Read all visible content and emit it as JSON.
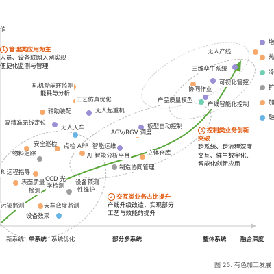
{
  "y_axis_label": "值",
  "x_ticks": [
    {
      "text": "新系统",
      "bold": false
    },
    {
      "text": "单系统",
      "bold": true
    },
    {
      "text": "系统优化",
      "bold": false
    },
    {
      "text": "部分多系统",
      "bold": true
    },
    {
      "text": "整体系统",
      "bold": true
    },
    {
      "text": "融合深度",
      "bold": true
    }
  ],
  "callouts": {
    "c1": {
      "num": "1",
      "head": "管理类应用为主",
      "lines": [
        "人员、设备联网入网实现",
        "便捷化监测与管理"
      ]
    },
    "c2": {
      "num": "2",
      "head": "交互类业务占比提升",
      "lines": [
        "产线升级改造，实现部分",
        "工艺与效能的提升"
      ]
    },
    "c3": {
      "num": "3",
      "head": "控制类业务创新",
      "head2": "突破",
      "lines": [
        "跨系统、跨流程深度",
        "交互、催生数字化、",
        "智能化创新应用"
      ]
    }
  },
  "legend": [
    {
      "label": "增",
      "color": "#9b8fd6"
    },
    {
      "label": "热",
      "color": "#f6a96b"
    },
    {
      "label": "冷",
      "color": "#6fcfb3"
    },
    {
      "label": "扩",
      "color": "#9e9e9e"
    },
    {
      "label": "加",
      "color": "#f6a96b"
    },
    {
      "label": "融",
      "color": "#67b4e5"
    }
  ],
  "apps": [
    {
      "label": "无人产线",
      "color": "#f6a96b"
    },
    {
      "label": "三维孪生系统",
      "color": "#9b8fd6"
    },
    {
      "label": "可视化管控",
      "color": "#9b8fd6"
    },
    {
      "label": "协同作业",
      "color": "#f6a96b"
    },
    {
      "label": "产品质量模型",
      "color": "#9b8fd6"
    },
    {
      "label": "产线智能化控制",
      "color": "#6fcfb3"
    },
    {
      "label": "轧机动能环监测",
      "color": "#f6a96b"
    },
    {
      "label": "能耗与分析",
      "color": ""
    },
    {
      "label": "工艺仿真优化",
      "color": "#f6a96b"
    },
    {
      "label": "辅助装配",
      "color": "#f6a96b"
    },
    {
      "label": "无人起重机",
      "color": "#9b8fd6"
    },
    {
      "label": "高精准无线定位",
      "color": "#9b8fd6"
    },
    {
      "label": "无人天车",
      "color": "#67b4e5"
    },
    {
      "label": "板型自动控制",
      "color": "#9b8fd6"
    },
    {
      "label": "AGV/RGV 调度",
      "color": "#f6a96b"
    },
    {
      "label": "安全巡检",
      "color": "#f6a96b"
    },
    {
      "label": "点检 APP",
      "color": "#f6a96b"
    },
    {
      "label": "智能运维",
      "color": "#9b8fd6"
    },
    {
      "label": "物料追踪",
      "color": "#9e9e9e"
    },
    {
      "label": "AI 智能分析平台",
      "color": "#f6a96b"
    },
    {
      "label": "立体仓库",
      "color": "#f6a96b"
    },
    {
      "label": "R 远程指导",
      "color": "#f6a96b"
    },
    {
      "label": "制造协同管理",
      "color": "#9e9e9e"
    },
    {
      "label": "CCD 光",
      "color": "#9b8fd6"
    },
    {
      "label": "学检测",
      "color": ""
    },
    {
      "label": "表面质量",
      "color": "#f6a96b"
    },
    {
      "label": "检测",
      "color": ""
    },
    {
      "label": "设备预测",
      "color": "#9e9e9e"
    },
    {
      "label": "性维护",
      "color": ""
    },
    {
      "label": "污染监测",
      "color": "#9e9e9e"
    },
    {
      "label": "天车弯度监测",
      "color": "#f6a96b"
    },
    {
      "label": "设备数采",
      "color": "#67b4e5"
    }
  ],
  "caption": "图 25. 有色加工发展"
}
